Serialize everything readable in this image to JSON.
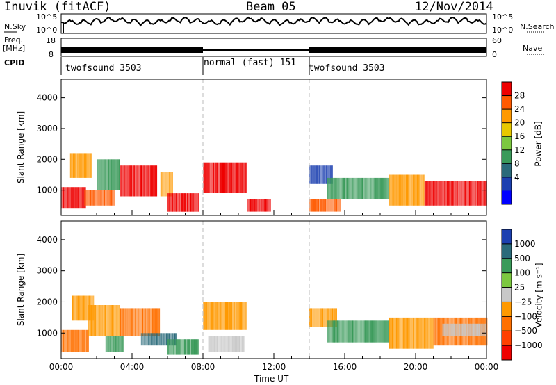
{
  "header": {
    "title": "Inuvik (fitACF)",
    "beam": "Beam 05",
    "date": "12/Nov/2014"
  },
  "noise_panel": {
    "left_label": "N.Sky",
    "right_label": "N.Search",
    "left_ticks": [
      "10^5",
      "10^0"
    ],
    "right_ticks": [
      "10^5",
      "10^0"
    ]
  },
  "freq_panel": {
    "left_label_line1": "Freq.",
    "left_label_line2": "[MHz]",
    "right_label": "Nave",
    "left_ticks": [
      "18",
      "8"
    ],
    "right_ticks": [
      "60",
      "0"
    ]
  },
  "cpid": {
    "label": "CPID",
    "segments": [
      {
        "name": "twofsound 3503",
        "start_hour": 0,
        "end_hour": 8
      },
      {
        "name": "normal (fast) 151",
        "start_hour": 8,
        "end_hour": 14
      },
      {
        "name": "twofsound 3503",
        "start_hour": 14,
        "end_hour": 24
      }
    ]
  },
  "power_colorbar": {
    "label": "Power [dB]",
    "ticks": [
      "28",
      "24",
      "20",
      "16",
      "12",
      "8",
      "4"
    ],
    "colors": [
      "#ee0000",
      "#ff5a00",
      "#ff9900",
      "#e8c800",
      "#7cc840",
      "#3a9a5a",
      "#2a6a7a",
      "#1c40b0",
      "#0000ff"
    ]
  },
  "velocity_colorbar": {
    "label": "Velocity [m s⁻¹]",
    "ticks": [
      "1000",
      "500",
      "100",
      "25",
      "−25",
      "−100",
      "−500",
      "−1000"
    ],
    "colors": [
      "#1c40b0",
      "#2a6a7a",
      "#3a9a5a",
      "#7cc840",
      "#c8c8c8",
      "#ff9900",
      "#ff7000",
      "#ff4000",
      "#ee0000"
    ]
  },
  "chart_data": [
    {
      "type": "heatmap",
      "name": "power",
      "ylabel": "Slant Range [km]",
      "yticks": [
        1000,
        2000,
        3000,
        4000
      ],
      "ylim": [
        180,
        4600
      ],
      "xlim": [
        0,
        24
      ],
      "xticks": [
        "00:00",
        "04:00",
        "08:00",
        "12:00",
        "16:00",
        "20:00",
        "00:00"
      ],
      "blobs": [
        {
          "t0": 0.0,
          "t1": 1.4,
          "r0": 400,
          "r1": 1100,
          "color": "#ee0000"
        },
        {
          "t0": 0.5,
          "t1": 1.7,
          "r0": 1400,
          "r1": 2200,
          "color": "#ff9900"
        },
        {
          "t0": 1.3,
          "t1": 3.0,
          "r0": 500,
          "r1": 1000,
          "color": "#ff5a00"
        },
        {
          "t0": 2.0,
          "t1": 3.3,
          "r0": 1000,
          "r1": 2000,
          "color": "#3a9a5a"
        },
        {
          "t0": 3.3,
          "t1": 5.4,
          "r0": 800,
          "r1": 1800,
          "color": "#ee0000"
        },
        {
          "t0": 5.6,
          "t1": 6.3,
          "r0": 800,
          "r1": 1600,
          "color": "#ff9900"
        },
        {
          "t0": 6.0,
          "t1": 7.8,
          "r0": 300,
          "r1": 900,
          "color": "#ee0000"
        },
        {
          "t0": 8.0,
          "t1": 10.5,
          "r0": 900,
          "r1": 1900,
          "color": "#ee0000"
        },
        {
          "t0": 10.5,
          "t1": 11.8,
          "r0": 300,
          "r1": 700,
          "color": "#ee0000"
        },
        {
          "t0": 14.0,
          "t1": 15.3,
          "r0": 1200,
          "r1": 1800,
          "color": "#1c40b0"
        },
        {
          "t0": 14.0,
          "t1": 15.8,
          "r0": 300,
          "r1": 700,
          "color": "#ff5a00"
        },
        {
          "t0": 15.0,
          "t1": 18.5,
          "r0": 700,
          "r1": 1400,
          "color": "#3a9a5a"
        },
        {
          "t0": 18.5,
          "t1": 20.5,
          "r0": 500,
          "r1": 1500,
          "color": "#ff9900"
        },
        {
          "t0": 20.5,
          "t1": 24.0,
          "r0": 500,
          "r1": 1300,
          "color": "#ee0000"
        }
      ]
    },
    {
      "type": "heatmap",
      "name": "velocity",
      "ylabel": "Slant Range [km]",
      "xlabel": "Time UT",
      "yticks": [
        1000,
        2000,
        3000,
        4000
      ],
      "ylim": [
        180,
        4600
      ],
      "xlim": [
        0,
        24
      ],
      "xticks": [
        "00:00",
        "04:00",
        "08:00",
        "12:00",
        "16:00",
        "20:00",
        "00:00"
      ],
      "blobs": [
        {
          "t0": 0.0,
          "t1": 1.5,
          "r0": 400,
          "r1": 1100,
          "color": "#ff7000"
        },
        {
          "t0": 0.6,
          "t1": 1.8,
          "r0": 1400,
          "r1": 2200,
          "color": "#ff9900"
        },
        {
          "t0": 1.5,
          "t1": 3.3,
          "r0": 900,
          "r1": 1900,
          "color": "#ff9900"
        },
        {
          "t0": 2.5,
          "t1": 3.5,
          "r0": 400,
          "r1": 900,
          "color": "#3a9a5a"
        },
        {
          "t0": 3.3,
          "t1": 5.5,
          "r0": 900,
          "r1": 1800,
          "color": "#ff7000"
        },
        {
          "t0": 4.5,
          "t1": 6.5,
          "r0": 600,
          "r1": 1000,
          "color": "#2a6a7a"
        },
        {
          "t0": 6.0,
          "t1": 7.8,
          "r0": 300,
          "r1": 800,
          "color": "#3a9a5a"
        },
        {
          "t0": 8.0,
          "t1": 10.5,
          "r0": 1100,
          "r1": 2000,
          "color": "#ff9900"
        },
        {
          "t0": 8.3,
          "t1": 10.3,
          "r0": 400,
          "r1": 900,
          "color": "#c8c8c8"
        },
        {
          "t0": 14.0,
          "t1": 15.5,
          "r0": 1200,
          "r1": 1800,
          "color": "#ff9900"
        },
        {
          "t0": 15.0,
          "t1": 18.5,
          "r0": 700,
          "r1": 1400,
          "color": "#3a9a5a"
        },
        {
          "t0": 18.5,
          "t1": 21.0,
          "r0": 500,
          "r1": 1500,
          "color": "#ff9900"
        },
        {
          "t0": 21.0,
          "t1": 24.0,
          "r0": 600,
          "r1": 1500,
          "color": "#ff7000"
        },
        {
          "t0": 21.5,
          "t1": 24.0,
          "r0": 900,
          "r1": 1300,
          "color": "#c8c8c8"
        }
      ]
    }
  ]
}
